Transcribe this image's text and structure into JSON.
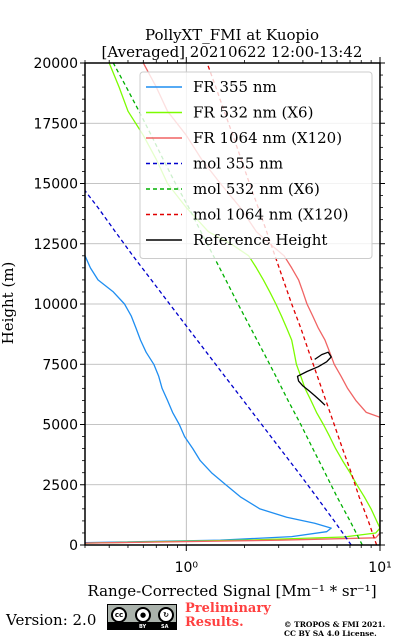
{
  "chart_data": {
    "type": "line",
    "title": "PollyXT_FMI at Kuopio",
    "subtitle": "[Averaged] 20210622 12:00-13:42",
    "xlabel": "Range-Corrected Signal [Mm⁻¹ * sr⁻¹]",
    "ylabel": "Height (m)",
    "x_scale": "log",
    "xlim": [
      0.3,
      10
    ],
    "ylim": [
      0,
      20000
    ],
    "x_ticks": [
      {
        "value": 1,
        "label": "10⁰"
      },
      {
        "value": 10,
        "label": "10¹"
      }
    ],
    "y_ticks": [
      0,
      2500,
      5000,
      7500,
      10000,
      12500,
      15000,
      17500,
      20000
    ],
    "grid": true,
    "legend_position": "top-right",
    "series": [
      {
        "name": "FR 355 nm",
        "color": "#1f8ef1",
        "style": "solid",
        "points": [
          [
            0.3,
            100
          ],
          [
            1.5,
            200
          ],
          [
            3.5,
            350
          ],
          [
            5.3,
            550
          ],
          [
            5.6,
            700
          ],
          [
            4.6,
            900
          ],
          [
            3.3,
            1150
          ],
          [
            2.4,
            1500
          ],
          [
            1.9,
            2000
          ],
          [
            1.6,
            2500
          ],
          [
            1.35,
            3000
          ],
          [
            1.18,
            3500
          ],
          [
            1.08,
            4000
          ],
          [
            0.98,
            4500
          ],
          [
            0.92,
            5000
          ],
          [
            0.85,
            5500
          ],
          [
            0.8,
            6000
          ],
          [
            0.75,
            6500
          ],
          [
            0.72,
            7000
          ],
          [
            0.68,
            7500
          ],
          [
            0.62,
            8000
          ],
          [
            0.58,
            8500
          ],
          [
            0.55,
            9000
          ],
          [
            0.52,
            9500
          ],
          [
            0.48,
            10000
          ],
          [
            0.42,
            10500
          ],
          [
            0.35,
            11000
          ],
          [
            0.32,
            11500
          ],
          [
            0.3,
            12000
          ]
        ]
      },
      {
        "name": "FR 532 nm (X6)",
        "color": "#7cfc00",
        "style": "solid",
        "points": [
          [
            0.3,
            80
          ],
          [
            2.0,
            200
          ],
          [
            6.5,
            330
          ],
          [
            9.5,
            500
          ],
          [
            10.0,
            700
          ],
          [
            9.6,
            1000
          ],
          [
            9.0,
            1500
          ],
          [
            8.3,
            2000
          ],
          [
            7.6,
            2500
          ],
          [
            7.0,
            3000
          ],
          [
            6.4,
            3500
          ],
          [
            5.9,
            4000
          ],
          [
            5.5,
            4500
          ],
          [
            5.1,
            5000
          ],
          [
            4.7,
            5500
          ],
          [
            4.4,
            6000
          ],
          [
            4.1,
            6500
          ],
          [
            3.9,
            7000
          ],
          [
            3.7,
            7500
          ],
          [
            3.6,
            8000
          ],
          [
            3.5,
            8500
          ],
          [
            3.3,
            9000
          ],
          [
            3.1,
            9500
          ],
          [
            2.9,
            10000
          ],
          [
            2.7,
            10500
          ],
          [
            2.5,
            11000
          ],
          [
            2.3,
            11500
          ],
          [
            2.1,
            12000
          ],
          [
            1.7,
            12500
          ],
          [
            1.3,
            13000
          ],
          [
            1.0,
            14000
          ],
          [
            0.8,
            15000
          ],
          [
            0.7,
            16000
          ],
          [
            0.6,
            17000
          ],
          [
            0.5,
            18000
          ],
          [
            0.45,
            19000
          ],
          [
            0.4,
            20000
          ]
        ]
      },
      {
        "name": "FR 1064 nm (X120)",
        "color": "#f06464",
        "style": "solid",
        "points": [
          [
            0.3,
            80
          ],
          [
            3.0,
            200
          ],
          [
            9.5,
            300
          ],
          [
            10.0,
            500
          ],
          [
            10.0,
            5300
          ],
          [
            8.5,
            5500
          ],
          [
            7.5,
            6000
          ],
          [
            6.8,
            6500
          ],
          [
            6.3,
            7000
          ],
          [
            5.8,
            7500
          ],
          [
            5.5,
            8000
          ],
          [
            5.2,
            8500
          ],
          [
            4.8,
            9000
          ],
          [
            4.5,
            9500
          ],
          [
            4.2,
            10000
          ],
          [
            4.0,
            10500
          ],
          [
            3.8,
            11000
          ],
          [
            3.5,
            11500
          ],
          [
            3.2,
            12000
          ],
          [
            2.7,
            12500
          ],
          [
            2.3,
            13000
          ],
          [
            1.9,
            14000
          ],
          [
            1.5,
            15000
          ],
          [
            1.2,
            16000
          ],
          [
            1.0,
            17000
          ],
          [
            0.8,
            18000
          ],
          [
            0.7,
            19000
          ],
          [
            0.6,
            20000
          ]
        ]
      },
      {
        "name": "mol 355 nm",
        "color": "#0000cc",
        "style": "dashed",
        "points": [
          [
            7.1,
            0
          ],
          [
            5.8,
            1000
          ],
          [
            4.7,
            2000
          ],
          [
            3.8,
            3000
          ],
          [
            3.05,
            4000
          ],
          [
            2.45,
            5000
          ],
          [
            1.97,
            6000
          ],
          [
            1.58,
            7000
          ],
          [
            1.27,
            8000
          ],
          [
            1.02,
            9000
          ],
          [
            0.82,
            10000
          ],
          [
            0.66,
            11000
          ],
          [
            0.53,
            12000
          ],
          [
            0.43,
            13000
          ],
          [
            0.35,
            14000
          ],
          [
            0.3,
            14700
          ]
        ]
      },
      {
        "name": "mol 532 nm (X6)",
        "color": "#00b000",
        "style": "dashed",
        "points": [
          [
            8.1,
            0
          ],
          [
            7.0,
            1000
          ],
          [
            6.0,
            2000
          ],
          [
            5.2,
            3000
          ],
          [
            4.5,
            4000
          ],
          [
            3.9,
            5000
          ],
          [
            3.35,
            6000
          ],
          [
            2.9,
            7000
          ],
          [
            2.5,
            8000
          ],
          [
            2.15,
            9000
          ],
          [
            1.85,
            10000
          ],
          [
            1.6,
            11000
          ],
          [
            1.38,
            12000
          ],
          [
            1.19,
            13000
          ],
          [
            1.03,
            14000
          ],
          [
            0.88,
            15000
          ],
          [
            0.76,
            16000
          ],
          [
            0.66,
            17000
          ],
          [
            0.57,
            18000
          ],
          [
            0.49,
            19000
          ],
          [
            0.42,
            20000
          ]
        ]
      },
      {
        "name": "mol 1064 nm (X120)",
        "color": "#e00000",
        "style": "dashed",
        "points": [
          [
            9.6,
            0
          ],
          [
            8.7,
            1000
          ],
          [
            7.8,
            2000
          ],
          [
            7.1,
            3000
          ],
          [
            6.4,
            4000
          ],
          [
            5.8,
            5000
          ],
          [
            5.25,
            6000
          ],
          [
            4.75,
            7000
          ],
          [
            4.3,
            8000
          ],
          [
            3.9,
            9000
          ],
          [
            3.5,
            10000
          ],
          [
            3.17,
            11000
          ],
          [
            2.87,
            12000
          ],
          [
            2.6,
            13000
          ],
          [
            2.35,
            14000
          ],
          [
            2.12,
            15000
          ],
          [
            1.92,
            16000
          ],
          [
            1.74,
            17000
          ],
          [
            1.57,
            18000
          ],
          [
            1.42,
            19000
          ],
          [
            1.28,
            20000
          ]
        ]
      },
      {
        "name": "Reference Height",
        "color": "#000000",
        "style": "solid",
        "points": [
          [
            5.2,
            5800
          ],
          [
            4.9,
            6000
          ],
          [
            4.6,
            6200
          ],
          [
            4.3,
            6400
          ],
          [
            4.0,
            6600
          ],
          [
            3.8,
            6800
          ],
          [
            3.75,
            7000
          ],
          [
            4.2,
            7200
          ],
          [
            4.8,
            7400
          ],
          [
            5.3,
            7600
          ],
          [
            5.6,
            7800
          ],
          [
            5.4,
            8000
          ],
          [
            5.0,
            7900
          ],
          [
            4.6,
            7700
          ]
        ]
      }
    ]
  },
  "footer": {
    "version": "Version: 2.0",
    "preliminary": [
      "Preliminary",
      "Results."
    ],
    "copyright": [
      "© TROPOS & FMI 2021.",
      "CC BY SA 4.0 License."
    ],
    "cc_badge": {
      "by": "BY",
      "sa": "SA"
    }
  }
}
